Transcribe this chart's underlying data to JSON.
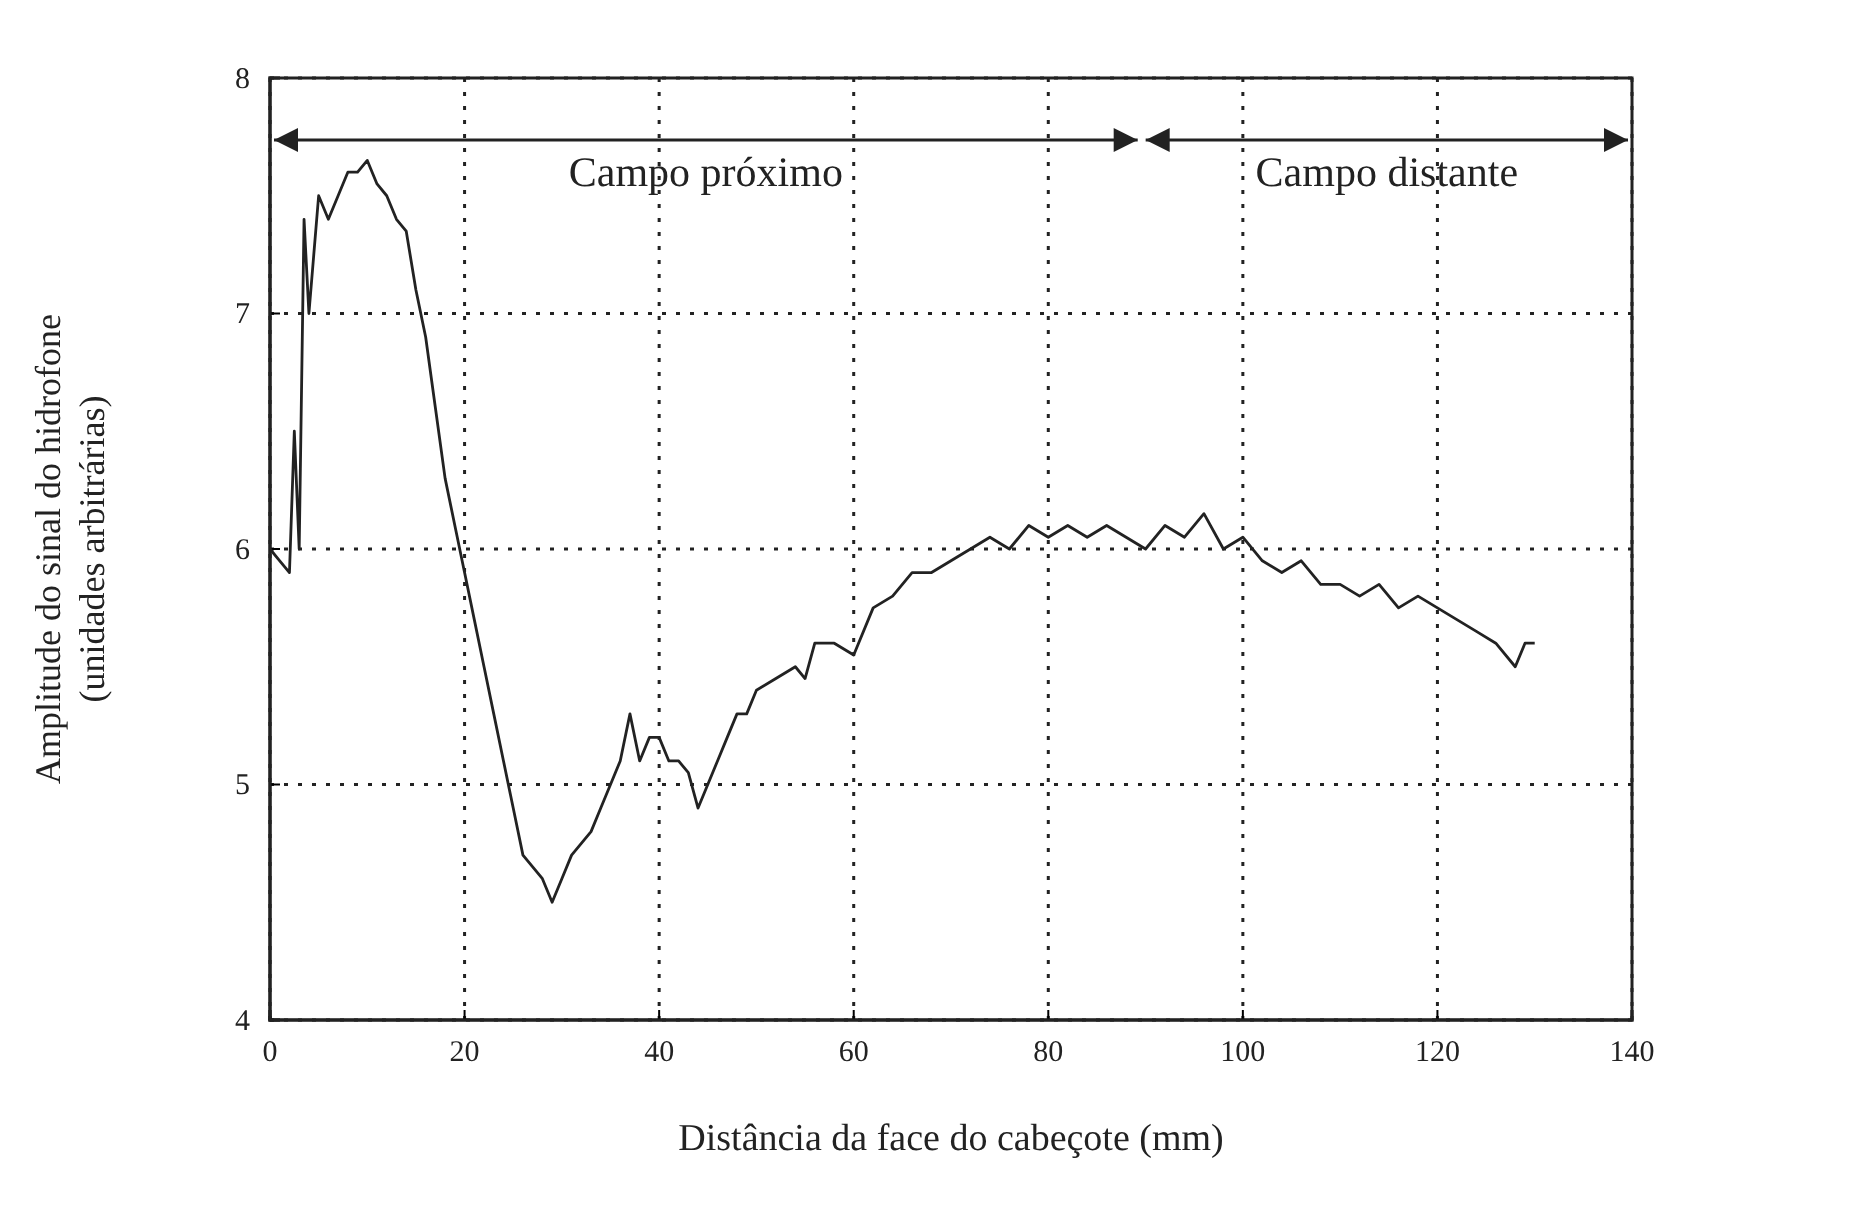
{
  "chart_data": {
    "type": "line",
    "xlabel": "Distância da face do cabeçote (mm)",
    "ylabel": "Amplitude do sinal do hidrofone (unidades arbitrárias)",
    "annotations": [
      "Campo próximo",
      "Campo distante"
    ],
    "x": [
      0,
      1,
      2,
      2.5,
      3,
      3.5,
      4,
      5,
      6,
      7,
      8,
      9,
      10,
      11,
      12,
      13,
      14,
      15,
      16,
      17,
      18,
      19,
      20,
      21,
      22,
      23,
      24,
      25,
      26,
      27,
      28,
      29,
      30,
      31,
      32,
      33,
      34,
      35,
      36,
      37,
      38,
      39,
      40,
      41,
      42,
      43,
      44,
      45,
      46,
      47,
      48,
      49,
      50,
      52,
      54,
      55,
      56,
      58,
      60,
      62,
      64,
      66,
      68,
      70,
      72,
      74,
      76,
      78,
      80,
      82,
      84,
      86,
      88,
      90,
      92,
      94,
      96,
      98,
      100,
      102,
      104,
      106,
      108,
      110,
      112,
      114,
      116,
      118,
      120,
      122,
      124,
      126,
      128,
      129,
      130
    ],
    "series": [
      {
        "color": "#222222",
        "values": [
          6.0,
          5.95,
          5.9,
          6.5,
          6.0,
          7.4,
          7.0,
          7.5,
          7.4,
          7.5,
          7.6,
          7.6,
          7.65,
          7.55,
          7.5,
          7.4,
          7.35,
          7.1,
          6.9,
          6.6,
          6.3,
          6.1,
          5.9,
          5.7,
          5.5,
          5.3,
          5.1,
          4.9,
          4.7,
          4.65,
          4.6,
          4.5,
          4.6,
          4.7,
          4.75,
          4.8,
          4.9,
          5.0,
          5.1,
          5.3,
          5.1,
          5.2,
          5.2,
          5.1,
          5.1,
          5.05,
          4.9,
          5.0,
          5.1,
          5.2,
          5.3,
          5.3,
          5.4,
          5.45,
          5.5,
          5.45,
          5.6,
          5.6,
          5.55,
          5.75,
          5.8,
          5.9,
          5.9,
          5.95,
          6.0,
          6.05,
          6.0,
          6.1,
          6.05,
          6.1,
          6.05,
          6.1,
          6.05,
          6.0,
          6.1,
          6.05,
          6.15,
          6.0,
          6.05,
          5.95,
          5.9,
          5.95,
          5.85,
          5.85,
          5.8,
          5.85,
          5.75,
          5.8,
          5.75,
          5.7,
          5.65,
          5.6,
          5.5,
          5.6,
          5.6
        ]
      }
    ],
    "xlim": [
      0,
      140
    ],
    "xticks": [
      0,
      20,
      40,
      60,
      80,
      100,
      120,
      140
    ],
    "ylim": [
      4,
      8
    ],
    "yticks": [
      4,
      5,
      6,
      7,
      8
    ],
    "grid": true,
    "line_style": "solid",
    "marker": "none"
  }
}
